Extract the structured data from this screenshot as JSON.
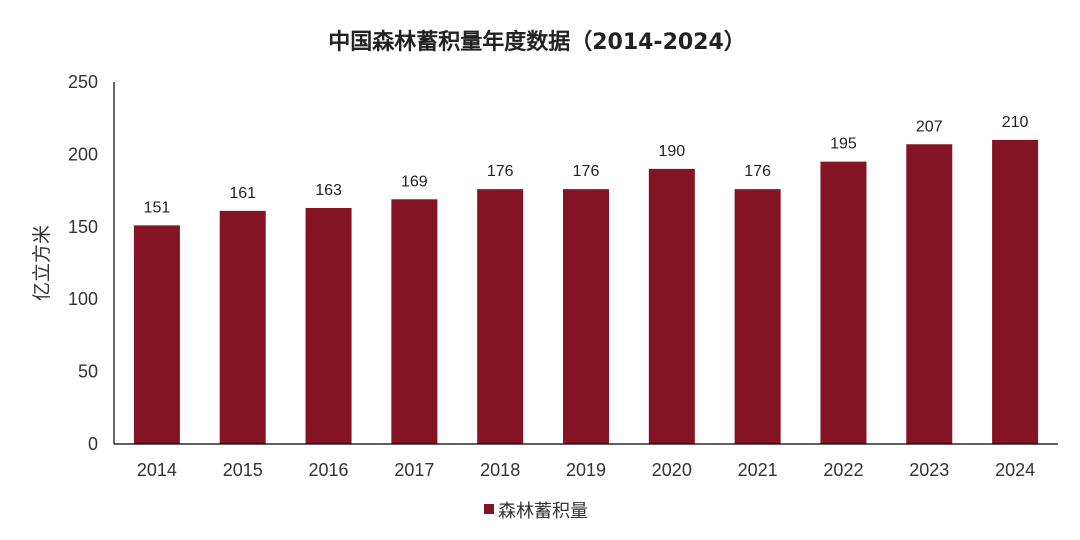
{
  "chart_data": {
    "type": "bar",
    "title": "中国森林蓄积量年度数据（2014-2024）",
    "ylabel": "亿立方米",
    "xlabel": "",
    "categories": [
      "2014",
      "2015",
      "2016",
      "2017",
      "2018",
      "2019",
      "2020",
      "2021",
      "2022",
      "2023",
      "2024"
    ],
    "series": [
      {
        "name": "森林蓄积量",
        "values": [
          151,
          161,
          163,
          169,
          176,
          176,
          190,
          176,
          195,
          207,
          210
        ],
        "color": "#841424"
      }
    ],
    "ylim": [
      0,
      250
    ],
    "yticks": [
      "0",
      "50",
      "100",
      "150",
      "200",
      "250"
    ],
    "grid": false,
    "legend_position": "bottom",
    "data_labels": true
  }
}
